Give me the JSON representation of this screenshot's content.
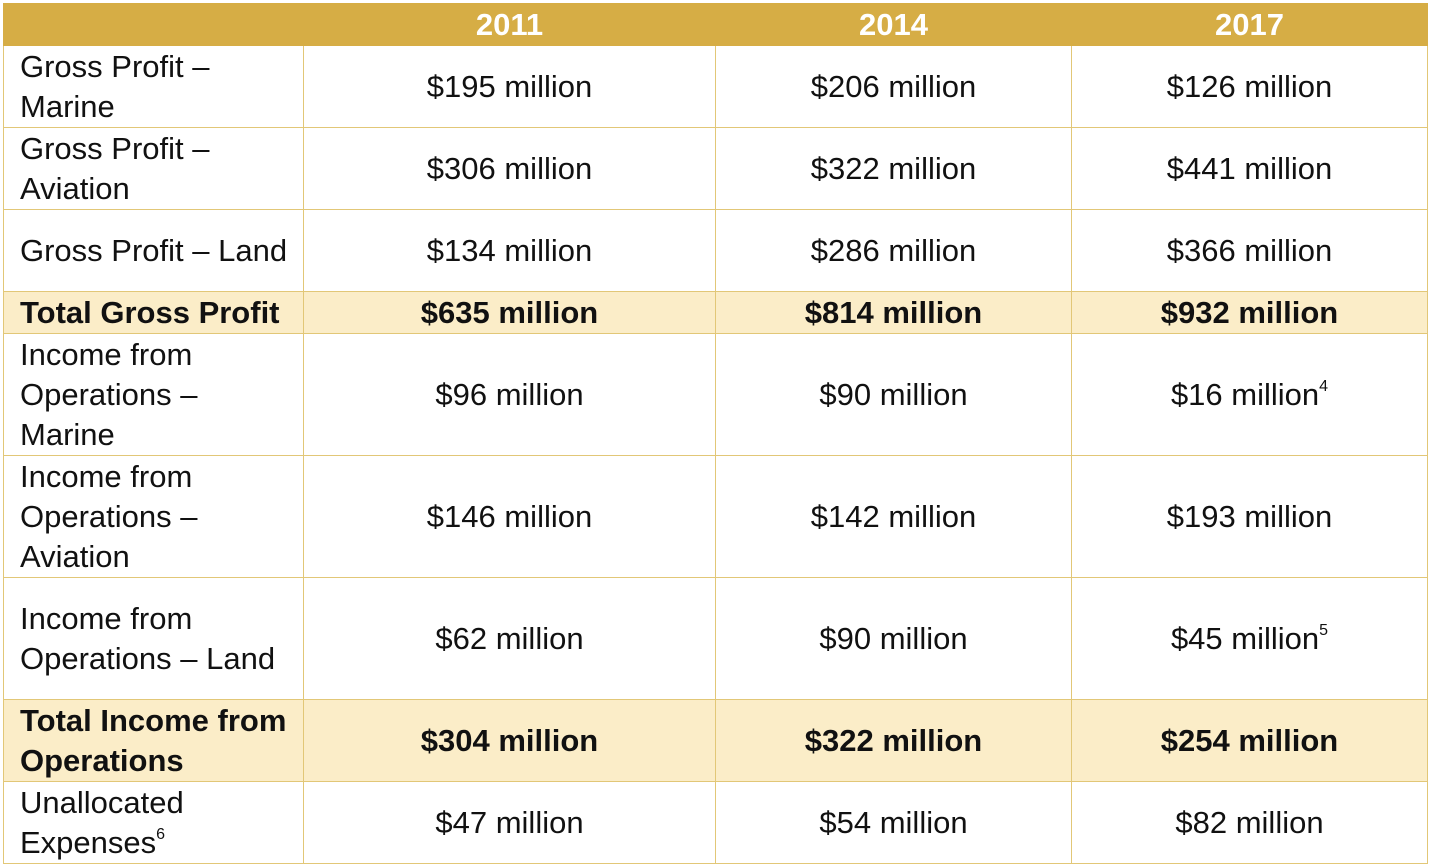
{
  "header": {
    "corner": "",
    "years": [
      "2011",
      "2014",
      "2017"
    ]
  },
  "rows": [
    {
      "label": "Gross Profit – Marine",
      "values": [
        "$195 million",
        "$206 million",
        "$126 million"
      ]
    },
    {
      "label": "Gross Profit – Aviation",
      "values": [
        "$306 million",
        "$322 million",
        "$441 million"
      ]
    },
    {
      "label": "Gross Profit – Land",
      "values": [
        "$134 million",
        "$286 million",
        "$366 million"
      ]
    },
    {
      "label": "Total Gross Profit",
      "values": [
        "$635 million",
        "$814 million",
        "$932 million"
      ]
    },
    {
      "label": "Income from Operations – Marine",
      "values": [
        "$96 million",
        "$90 million",
        "$16 million"
      ],
      "footnote_2017": "4"
    },
    {
      "label": "Income from Operations – Aviation",
      "values": [
        "$146 million",
        "$142 million",
        "$193 million"
      ]
    },
    {
      "label": "Income from Operations – Land",
      "values": [
        "$62 million",
        "$90 million",
        "$45 million"
      ],
      "footnote_2017": "5"
    },
    {
      "label": "Total Income from Operations",
      "values": [
        "$304 million",
        "$322 million",
        "$254 million"
      ]
    },
    {
      "label": "Unallocated Expenses",
      "label_footnote": "6",
      "values": [
        "$47 million",
        "$54 million",
        "$82 million"
      ]
    }
  ],
  "colors": {
    "header_bg": "#d6ad45",
    "total_row_bg": "#fbedc8",
    "border": "#e2c777"
  }
}
